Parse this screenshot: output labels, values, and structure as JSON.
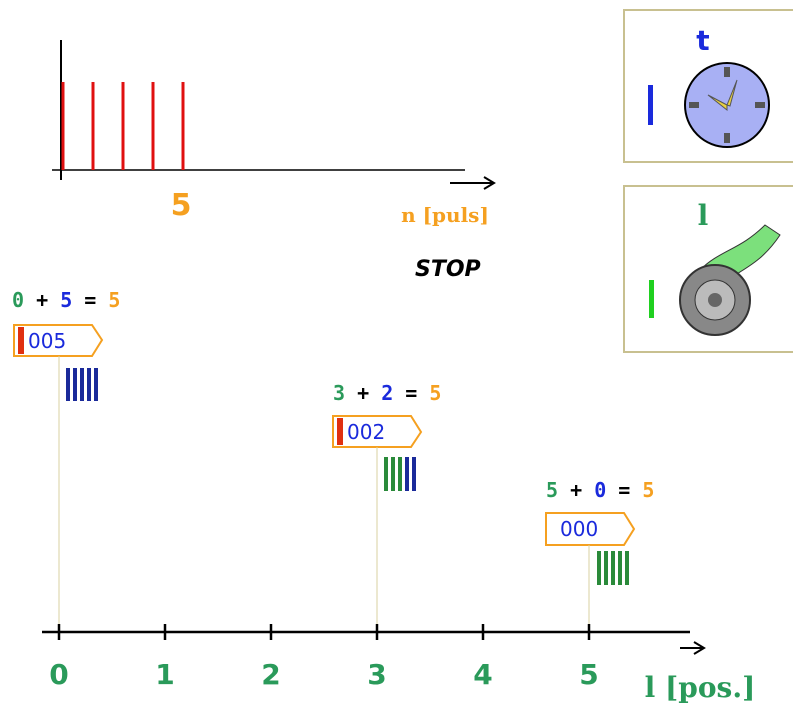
{
  "pulse_plot": {
    "count_label": "5",
    "axis_label": "n [puls]"
  },
  "status": "STOP",
  "panels": [
    {
      "label": "t"
    },
    {
      "label": "l"
    }
  ],
  "stations": [
    {
      "sum": [
        "0",
        "+",
        "5",
        "=",
        "5"
      ],
      "counter": "005"
    },
    {
      "sum": [
        "3",
        "+",
        "2",
        "=",
        "5"
      ],
      "counter": "002"
    },
    {
      "sum": [
        "5",
        "+",
        "0",
        "=",
        "5"
      ],
      "counter": "000"
    }
  ],
  "axis": {
    "ticks": [
      "0",
      "1",
      "2",
      "3",
      "4",
      "5"
    ],
    "label": "l [pos.]"
  }
}
